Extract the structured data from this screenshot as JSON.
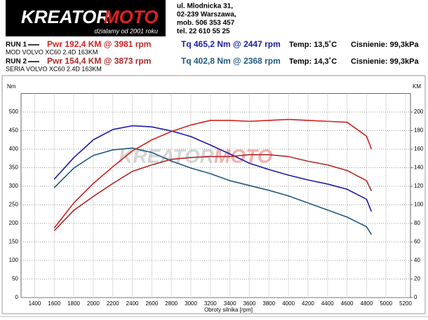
{
  "header": {
    "logo_main": "KREATOR",
    "logo_accent": "MOTO",
    "slogan": "dzialamy od 2001 roku",
    "address": [
      "ul. Mlodnicka 31,",
      "02-239  Warszawa,",
      "mob.  506 353 457",
      "tel.  22 610 55 25"
    ]
  },
  "runs": [
    {
      "label": "RUN 1",
      "power": "Pwr  192,4 KM @ 3981 rpm",
      "torque": "Tq 465,2 Nm @ 2447 rpm",
      "temp": "Temp: 13,5˚C",
      "pressure": "Cisnienie: 99,3kPa",
      "subtitle": "MOD VOLVO XC60 2.4D 163KM",
      "power_color": "#d42020",
      "torque_color": "#1c1ca8"
    },
    {
      "label": "RUN 2",
      "power": "Pwr  154,4 KM @ 3873 rpm",
      "torque": "Tq 402,8 Nm @ 2368 rpm",
      "temp": "Temp: 14,3˚C",
      "pressure": "Cisnienie: 99,3kPa",
      "subtitle": "SERIA VOLVO XC60 2.4D 163KM",
      "power_color": "#b02828",
      "torque_color": "#1f5a80"
    }
  ],
  "chart_data": {
    "type": "line",
    "ylabel": "Nm",
    "y2label": "KM",
    "xlabel": "Obroty silnika [rpm]",
    "x": [
      1600,
      1800,
      2000,
      2200,
      2400,
      2600,
      2800,
      3000,
      3200,
      3400,
      3600,
      3800,
      4000,
      4200,
      4400,
      4600,
      4800,
      4850
    ],
    "xlim": [
      1260,
      5250
    ],
    "xticks": [
      1400,
      1600,
      1800,
      2000,
      2200,
      2400,
      2600,
      2800,
      3000,
      3200,
      3400,
      3600,
      3800,
      4000,
      4200,
      4400,
      4600,
      4800,
      5000,
      5200
    ],
    "ylim": [
      0,
      550
    ],
    "yticks": [
      0,
      50,
      100,
      150,
      200,
      250,
      300,
      350,
      400,
      450,
      500
    ],
    "y2lim": [
      0,
      220
    ],
    "y2ticks": [
      0,
      20,
      40,
      60,
      80,
      100,
      120,
      140,
      160,
      180,
      200
    ],
    "grid": true,
    "series": [
      {
        "color": "#1c1ca8",
        "values": [
          319,
          377,
          425,
          453,
          463,
          460,
          449,
          434,
          411,
          387,
          362,
          345,
          330,
          317,
          306,
          292,
          265,
          232
        ]
      },
      {
        "color": "#1f5a80",
        "values": [
          296,
          349,
          383,
          398,
          403,
          391,
          368,
          349,
          334,
          315,
          302,
          289,
          274,
          255,
          236,
          217,
          191,
          170
        ]
      },
      {
        "color": "#d42020",
        "axis": "y2",
        "values": [
          75,
          102,
          123,
          141,
          158,
          170,
          179,
          186,
          191,
          191,
          190,
          191,
          192,
          191,
          190,
          189,
          174,
          160
        ]
      },
      {
        "color": "#b02828",
        "axis": "y2",
        "values": [
          72,
          94,
          109,
          123,
          136,
          143,
          149,
          151,
          152,
          152,
          154,
          154,
          152,
          147,
          143,
          137,
          126,
          115
        ]
      }
    ]
  }
}
